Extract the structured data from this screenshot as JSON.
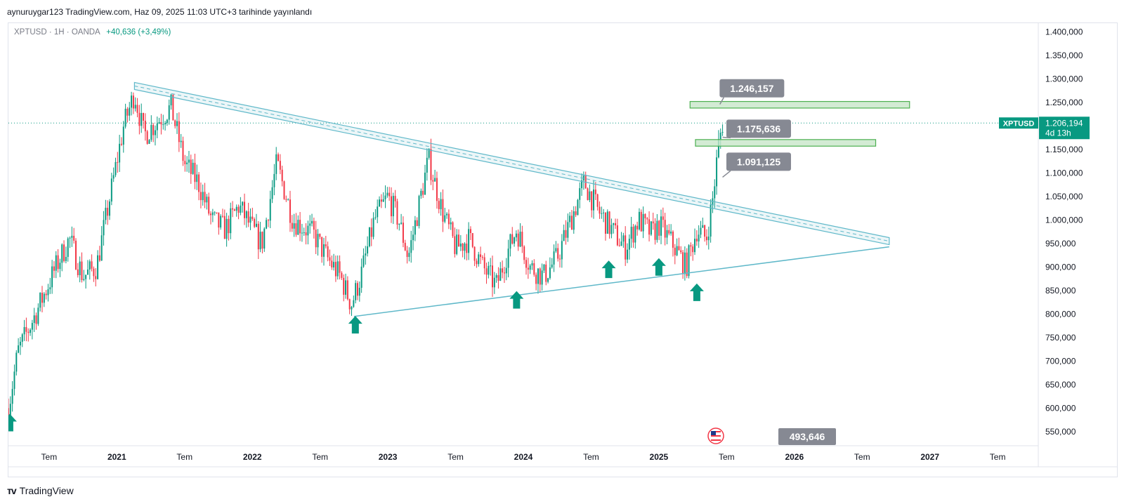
{
  "header": {
    "published": "aynuruygar123 TradingView.com, Haz 09, 2025 11:03 UTC+3 tarihinde yayınlandı"
  },
  "symbol": {
    "name": "XPTUSD",
    "interval": "1H",
    "source": "OANDA",
    "change": "+40,636 (+3,49%)"
  },
  "price_tag": {
    "symbol": "XPTUSD",
    "price": "1.206,194",
    "countdown": "4d 13h"
  },
  "bottom_label": "493,646",
  "footer": {
    "brand": "TradingView"
  },
  "colors": {
    "up": "#089981",
    "down": "#f23645",
    "trend": "#5fb8c9",
    "zone_fill": "#c8e6c9",
    "zone_stroke": "#4caf50",
    "callout": "#868993"
  },
  "chart_data": {
    "type": "candlestick",
    "y_axis": {
      "min": 520,
      "max": 1420,
      "ticks": [
        550,
        600,
        650,
        700,
        750,
        800,
        850,
        900,
        950,
        1000,
        1050,
        1100,
        1150,
        1200,
        1250,
        1300,
        1350,
        1400
      ],
      "tick_labels": [
        "550,000",
        "600,000",
        "650,000",
        "700,000",
        "750,000",
        "800,000",
        "850,000",
        "900,000",
        "950,000",
        "1.000,000",
        "1.050,000",
        "1.100,000",
        "1.150,000",
        "1.200,000",
        "1.250,000",
        "1.300,000",
        "1.350,000",
        "1.400,000"
      ]
    },
    "x_axis": {
      "start": 2020.2,
      "end": 2027.8,
      "ticks": [
        {
          "t": 2020.5,
          "label": "Tem"
        },
        {
          "t": 2021.0,
          "label": "2021"
        },
        {
          "t": 2021.5,
          "label": "Tem"
        },
        {
          "t": 2022.0,
          "label": "2022"
        },
        {
          "t": 2022.5,
          "label": "Tem"
        },
        {
          "t": 2023.0,
          "label": "2023"
        },
        {
          "t": 2023.5,
          "label": "Tem"
        },
        {
          "t": 2024.0,
          "label": "2024"
        },
        {
          "t": 2024.5,
          "label": "Tem"
        },
        {
          "t": 2025.0,
          "label": "2025"
        },
        {
          "t": 2025.5,
          "label": "Tem"
        },
        {
          "t": 2026.0,
          "label": "2026"
        },
        {
          "t": 2026.5,
          "label": "Tem"
        },
        {
          "t": 2027.0,
          "label": "2027"
        },
        {
          "t": 2027.5,
          "label": "Tem"
        }
      ]
    },
    "path": [
      [
        2020.2,
        600
      ],
      [
        2020.27,
        720
      ],
      [
        2020.4,
        800
      ],
      [
        2020.55,
        900
      ],
      [
        2020.65,
        960
      ],
      [
        2020.75,
        880
      ],
      [
        2020.85,
        900
      ],
      [
        2020.95,
        1050
      ],
      [
        2021.05,
        1200
      ],
      [
        2021.13,
        1270
      ],
      [
        2021.2,
        1180
      ],
      [
        2021.3,
        1210
      ],
      [
        2021.4,
        1240
      ],
      [
        2021.5,
        1120
      ],
      [
        2021.6,
        1080
      ],
      [
        2021.7,
        1000
      ],
      [
        2021.8,
        980
      ],
      [
        2021.9,
        1030
      ],
      [
        2022.0,
        980
      ],
      [
        2022.07,
        950
      ],
      [
        2022.18,
        1120
      ],
      [
        2022.3,
        1000
      ],
      [
        2022.45,
        970
      ],
      [
        2022.55,
        920
      ],
      [
        2022.65,
        880
      ],
      [
        2022.73,
        820
      ],
      [
        2022.8,
        880
      ],
      [
        2022.9,
        1000
      ],
      [
        2023.0,
        1050
      ],
      [
        2023.08,
        1000
      ],
      [
        2023.15,
        920
      ],
      [
        2023.3,
        1130
      ],
      [
        2023.4,
        1020
      ],
      [
        2023.5,
        940
      ],
      [
        2023.6,
        960
      ],
      [
        2023.7,
        900
      ],
      [
        2023.8,
        860
      ],
      [
        2023.88,
        930
      ],
      [
        2023.95,
        980
      ],
      [
        2024.05,
        900
      ],
      [
        2024.15,
        880
      ],
      [
        2024.25,
        920
      ],
      [
        2024.35,
        1000
      ],
      [
        2024.45,
        1080
      ],
      [
        2024.55,
        1020
      ],
      [
        2024.65,
        980
      ],
      [
        2024.75,
        940
      ],
      [
        2024.85,
        1000
      ],
      [
        2024.95,
        970
      ],
      [
        2025.0,
        990
      ],
      [
        2025.1,
        950
      ],
      [
        2025.2,
        900
      ],
      [
        2025.28,
        980
      ],
      [
        2025.35,
        960
      ],
      [
        2025.4,
        1050
      ],
      [
        2025.44,
        1160
      ],
      [
        2025.47,
        1206
      ]
    ],
    "trendlines": [
      {
        "kind": "channel",
        "from": [
          2021.13,
          1285
        ],
        "to": [
          2026.7,
          955
        ],
        "width": 10
      },
      {
        "kind": "line",
        "from": [
          2022.75,
          795
        ],
        "to": [
          2026.7,
          943
        ]
      }
    ],
    "zones": [
      {
        "t1": 2025.23,
        "t2": 2026.85,
        "low": 1238,
        "high": 1252
      },
      {
        "t1": 2025.27,
        "t2": 2026.6,
        "low": 1157,
        "high": 1171
      }
    ],
    "callouts": [
      {
        "text": "1.246,157",
        "t": 2025.5,
        "price": 1280,
        "anchor_t": 2025.45,
        "anchor_price": 1246
      },
      {
        "text": "1.175,636",
        "t": 2025.55,
        "price": 1194,
        "anchor_t": 2025.47,
        "anchor_price": 1176
      },
      {
        "text": "1.091,125",
        "t": 2025.55,
        "price": 1124,
        "anchor_t": 2025.47,
        "anchor_price": 1091
      }
    ],
    "arrows": [
      {
        "t": 2022.76,
        "price": 775
      },
      {
        "t": 2023.95,
        "price": 828
      },
      {
        "t": 2024.63,
        "price": 893
      },
      {
        "t": 2025.0,
        "price": 898
      },
      {
        "t": 2025.28,
        "price": 844
      },
      {
        "t": 2020.21,
        "price": 567
      }
    ],
    "last_price": 1206.194
  }
}
